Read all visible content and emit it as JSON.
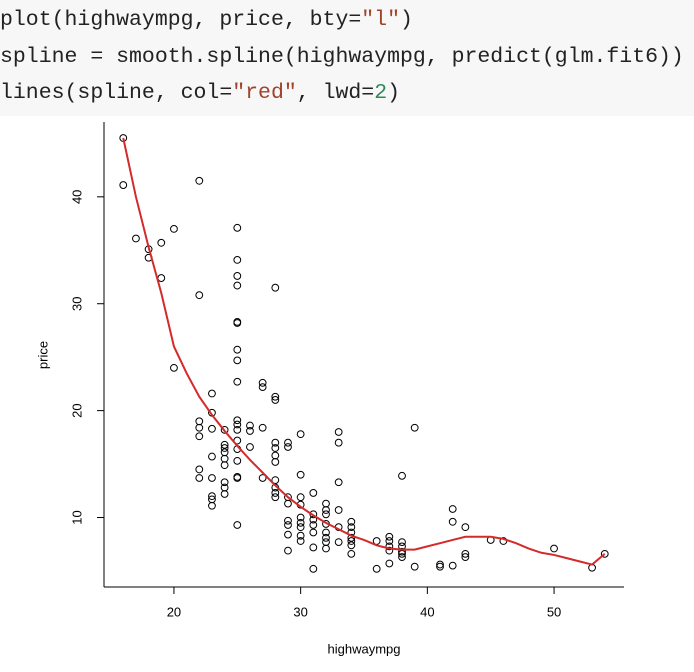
{
  "code": [
    [
      {
        "text": "plot(highwaympg, price, bty="
      },
      {
        "text": "\"l\"",
        "color": "#a0432a"
      },
      {
        "text": ")"
      }
    ],
    [
      {
        "text": "spline = smooth.spline(highwaympg, predict(glm.fit6))"
      }
    ],
    [
      {
        "text": "lines(spline, col="
      },
      {
        "text": "\"red\"",
        "color": "#a0432a"
      },
      {
        "text": ", lwd="
      },
      {
        "text": "2",
        "color": "#2e8b57"
      },
      {
        "text": ")"
      }
    ]
  ],
  "chart_data": [
    {
      "type": "scatter",
      "x_label": "highwaympg",
      "y_label": "price",
      "color": "#000000",
      "x": [
        16,
        16,
        17,
        18,
        18,
        19,
        19,
        20,
        20,
        22,
        22,
        22,
        22,
        22,
        22,
        22,
        23,
        23,
        23,
        23,
        23,
        23,
        23,
        23,
        24,
        24,
        24,
        24,
        24,
        24,
        24,
        24,
        24,
        25,
        25,
        25,
        25,
        25,
        25,
        25,
        25,
        25,
        25,
        25,
        25,
        25,
        25,
        25,
        25,
        25,
        25,
        26,
        26,
        26,
        27,
        27,
        27,
        27,
        28,
        28,
        28,
        28,
        28,
        28,
        28,
        28,
        28,
        28,
        28,
        29,
        29,
        29,
        29,
        29,
        29,
        29,
        29,
        30,
        30,
        30,
        30,
        30,
        30,
        30,
        30,
        30,
        31,
        31,
        31,
        31,
        31,
        31,
        31,
        32,
        32,
        32,
        32,
        32,
        32,
        32,
        32,
        33,
        33,
        33,
        33,
        33,
        33,
        34,
        34,
        34,
        34,
        34,
        34,
        34,
        36,
        36,
        37,
        37,
        37,
        37,
        37,
        38,
        38,
        38,
        38,
        38,
        38,
        39,
        39,
        41,
        41,
        42,
        42,
        42,
        43,
        43,
        43,
        45,
        46,
        50,
        53,
        54
      ],
      "y": [
        45.5,
        41.1,
        36.1,
        35.1,
        34.3,
        35.7,
        32.4,
        37.0,
        24.0,
        41.5,
        30.8,
        19.0,
        18.4,
        17.6,
        14.5,
        13.7,
        21.6,
        19.8,
        18.3,
        15.7,
        13.7,
        12.0,
        11.7,
        11.1,
        18.2,
        16.8,
        16.5,
        16.1,
        15.5,
        14.9,
        13.3,
        12.8,
        12.2,
        37.1,
        34.1,
        32.6,
        31.7,
        28.3,
        28.2,
        25.7,
        24.7,
        22.7,
        19.1,
        18.7,
        18.2,
        17.2,
        16.4,
        15.3,
        13.8,
        13.7,
        9.3,
        18.6,
        18.1,
        16.6,
        22.6,
        22.2,
        18.4,
        13.7,
        31.5,
        21.3,
        21.0,
        17.0,
        16.5,
        15.8,
        15.2,
        13.5,
        12.8,
        12.3,
        11.9,
        17.0,
        16.6,
        11.9,
        11.3,
        9.7,
        9.3,
        8.4,
        6.9,
        17.8,
        14.0,
        11.9,
        11.2,
        10.0,
        9.5,
        9.1,
        8.3,
        7.8,
        12.3,
        10.3,
        9.8,
        9.3,
        8.6,
        7.2,
        5.2,
        11.3,
        10.7,
        10.3,
        9.4,
        8.6,
        8.1,
        7.7,
        7.1,
        18.0,
        17.0,
        13.3,
        10.7,
        9.1,
        7.7,
        9.6,
        9.1,
        8.6,
        8.1,
        7.8,
        7.4,
        6.6,
        7.8,
        5.2,
        8.2,
        7.8,
        7.3,
        6.9,
        5.7,
        13.9,
        7.7,
        7.3,
        6.8,
        6.6,
        6.3,
        18.4,
        5.4,
        5.6,
        5.4,
        10.8,
        9.6,
        5.5,
        9.1,
        6.6,
        6.3,
        7.9,
        7.8,
        7.1,
        5.3,
        6.6
      ],
      "xlim": [
        14.48,
        55.52
      ],
      "ylim": [
        3.5,
        47.0
      ],
      "xticks": [
        20,
        30,
        40,
        50
      ],
      "yticks": [
        10,
        20,
        30,
        40
      ]
    },
    {
      "type": "line",
      "color": "#d42a2a",
      "x": [
        16,
        17,
        18,
        19,
        20,
        21,
        22,
        23,
        24,
        25,
        26,
        27,
        28,
        29,
        30,
        31,
        32,
        33,
        34,
        35,
        36,
        37,
        38,
        39,
        40,
        41,
        42,
        43,
        44,
        45,
        46,
        47,
        48,
        49,
        50,
        51,
        52,
        53,
        54
      ],
      "y": [
        45.5,
        40,
        35.3,
        31,
        26,
        23.5,
        21.3,
        19.6,
        18.1,
        16.7,
        15.4,
        14.2,
        13.0,
        11.9,
        11.0,
        10.2,
        9.5,
        8.9,
        8.3,
        7.9,
        7.4,
        7.1,
        7.0,
        7.0,
        7.3,
        7.6,
        7.9,
        8.2,
        8.2,
        8.2,
        8.0,
        7.6,
        7.1,
        6.7,
        6.5,
        6.2,
        5.9,
        5.6,
        6.6
      ]
    }
  ]
}
